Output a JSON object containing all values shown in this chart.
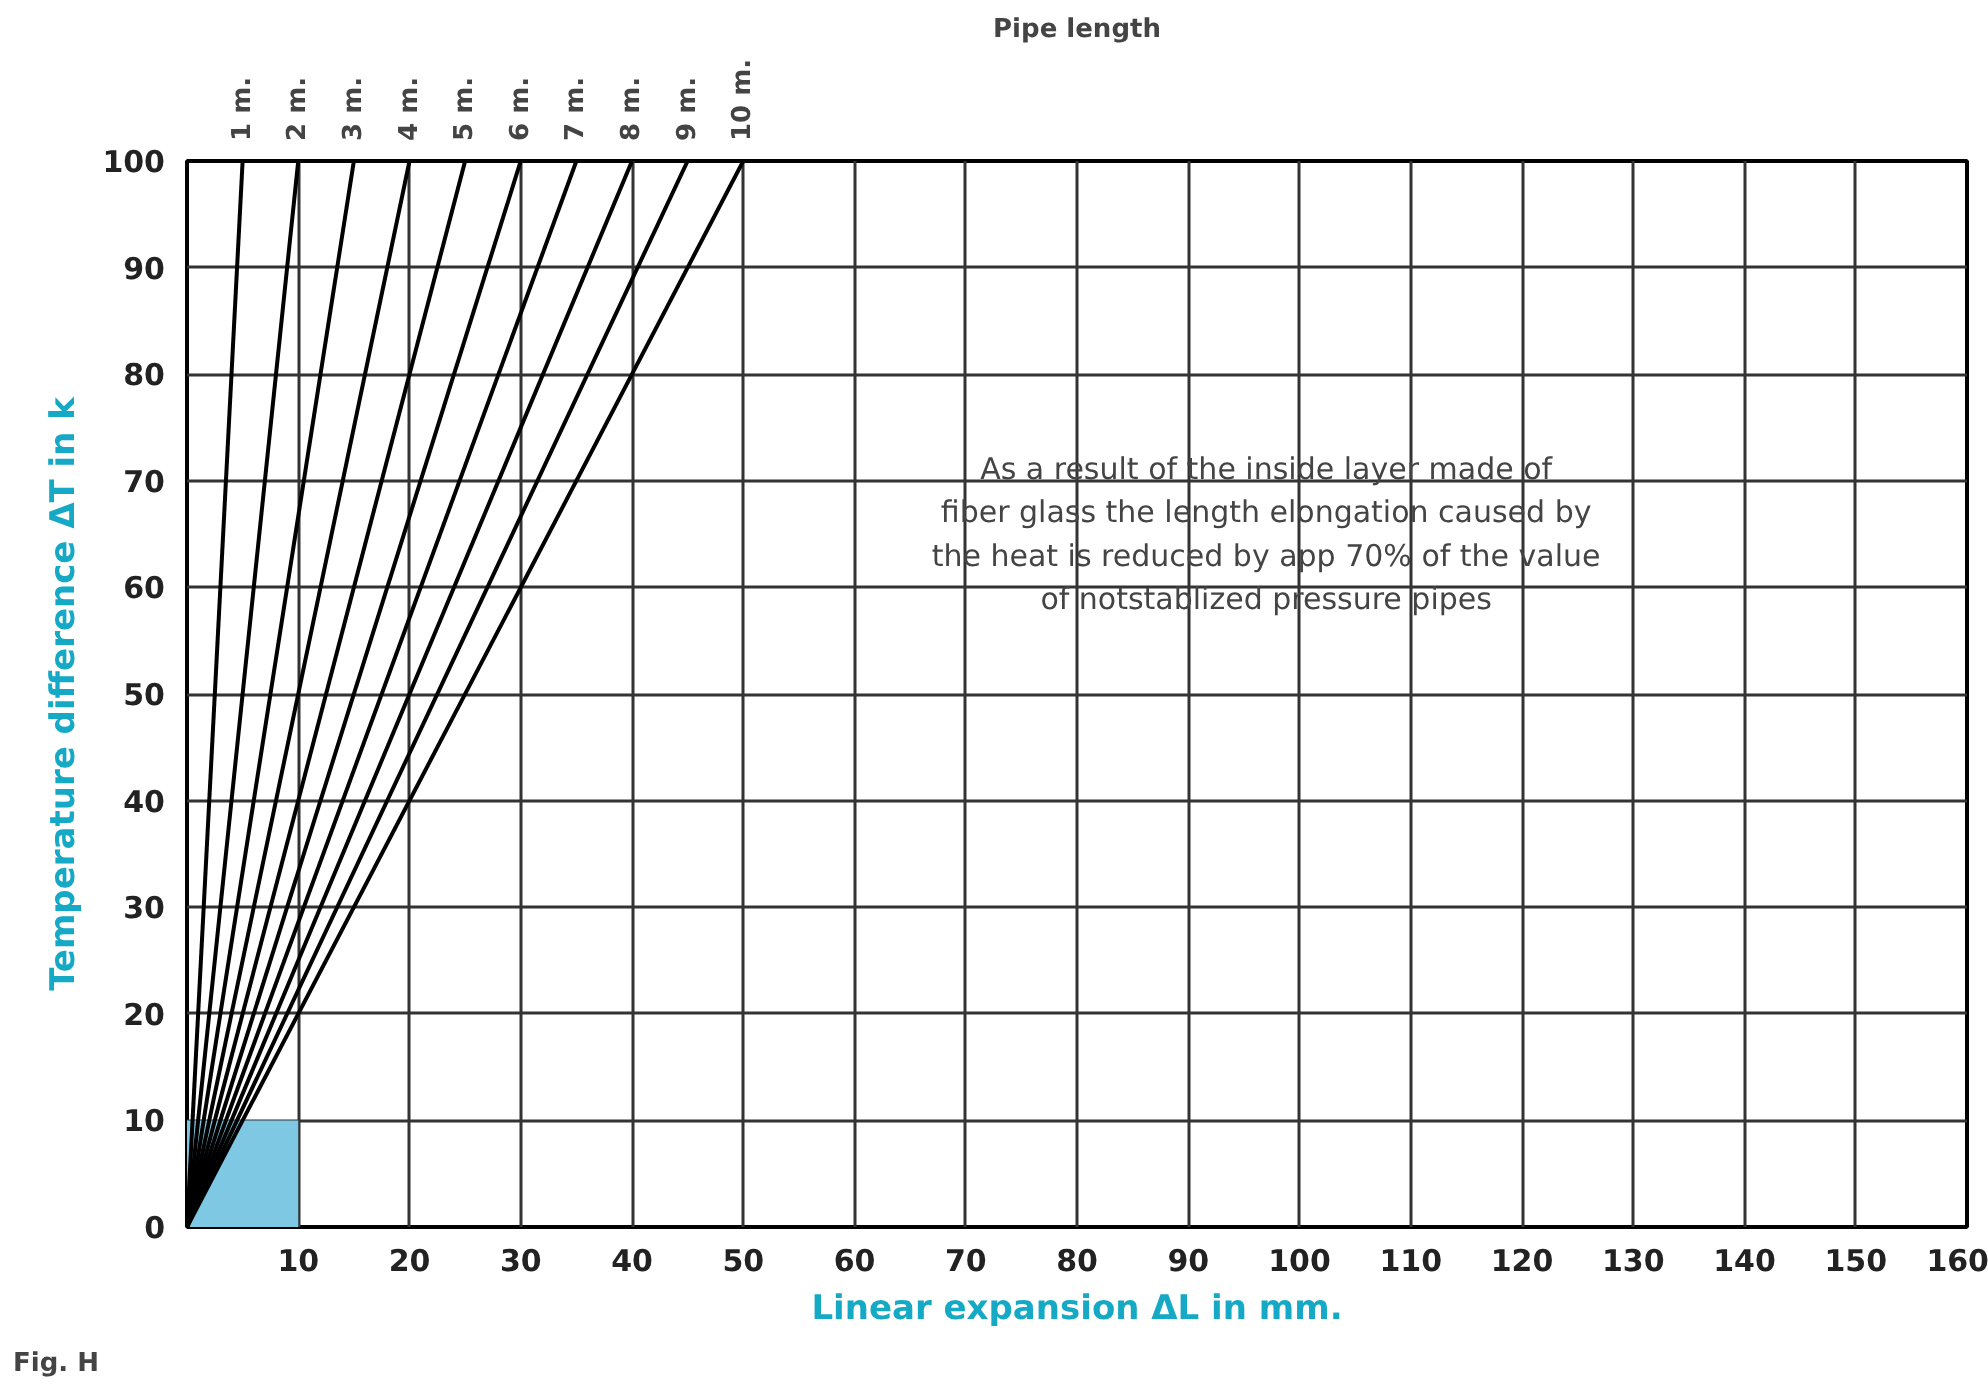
{
  "chart_data": {
    "type": "line",
    "xlabel": "Linear expansion ΔL in mm.",
    "ylabel": "Temperature difference ΔT in k",
    "legend_title": "Pipe length",
    "annotations": [
      "As a result of the inside layer made of\nfiber glass the length elongation caused by\nthe heat is reduced by app 70% of the value\nof notstablized pressure pipes",
      "Fig. H"
    ],
    "xlim": [
      0,
      160
    ],
    "ylim": [
      0,
      100
    ],
    "xticks": [
      {
        "value": 0,
        "label": null
      },
      10,
      20,
      30,
      40,
      50,
      60,
      70,
      80,
      90,
      100,
      110,
      120,
      130,
      140,
      150,
      160
    ],
    "yticks": [
      0,
      10,
      20,
      30,
      40,
      50,
      60,
      70,
      80,
      90,
      100
    ],
    "grid": true,
    "series": [
      {
        "type": "area",
        "color": "#7ec8e3",
        "x": [
          0,
          10
        ],
        "values": [
          10,
          10
        ]
      },
      {
        "name": "1 m.",
        "color": "#000000",
        "x": [
          0,
          5
        ],
        "values": [
          0,
          100
        ]
      },
      {
        "name": "2 m.",
        "color": "#000000",
        "x": [
          0,
          10
        ],
        "values": [
          0,
          100
        ]
      },
      {
        "name": "3 m.",
        "color": "#000000",
        "x": [
          0,
          15
        ],
        "values": [
          0,
          100
        ]
      },
      {
        "name": "4 m.",
        "color": "#000000",
        "x": [
          0,
          20
        ],
        "values": [
          0,
          100
        ]
      },
      {
        "name": "5 m.",
        "color": "#000000",
        "x": [
          0,
          25
        ],
        "values": [
          0,
          100
        ]
      },
      {
        "name": "6 m.",
        "color": "#000000",
        "x": [
          0,
          30
        ],
        "values": [
          0,
          100
        ]
      },
      {
        "name": "7 m.",
        "color": "#000000",
        "x": [
          0,
          35
        ],
        "values": [
          0,
          100
        ]
      },
      {
        "name": "8 m.",
        "color": "#000000",
        "x": [
          0,
          40
        ],
        "values": [
          0,
          100
        ]
      },
      {
        "name": "9 m.",
        "color": "#000000",
        "x": [
          0,
          45
        ],
        "values": [
          0,
          100
        ]
      },
      {
        "name": "10 m.",
        "color": "#000000",
        "x": [
          0,
          50
        ],
        "values": [
          0,
          100
        ]
      }
    ]
  }
}
